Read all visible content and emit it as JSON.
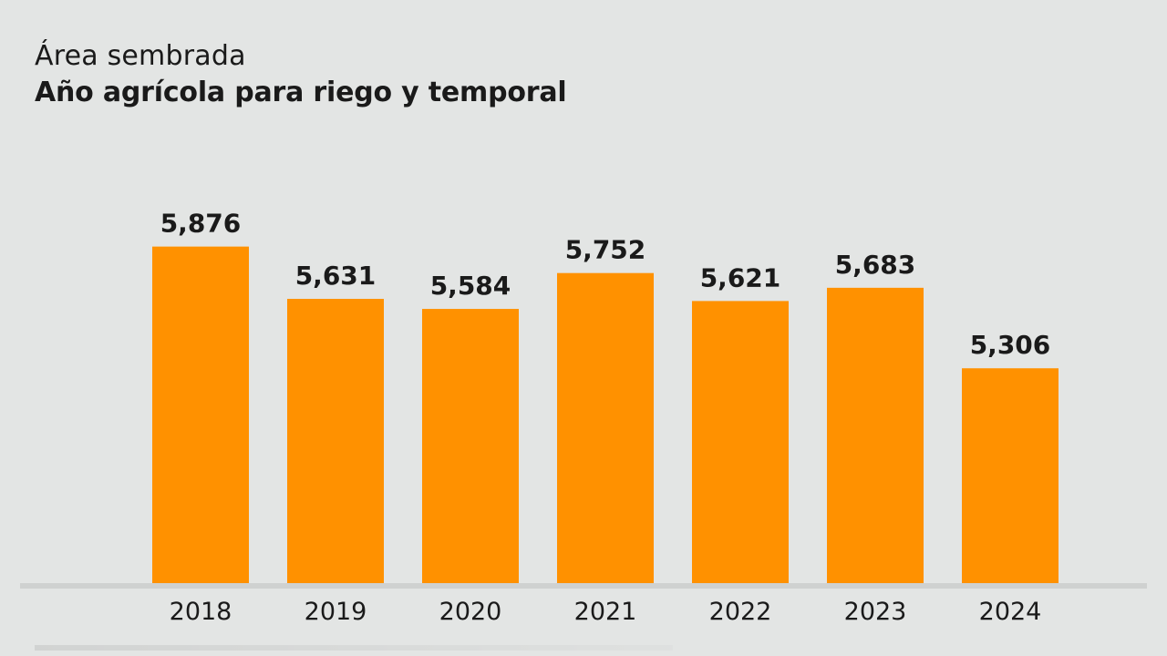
{
  "chart_data": {
    "type": "bar",
    "title": "Área sembrada",
    "subtitle": "Año agrícola para riego y temporal",
    "categories": [
      "2018",
      "2019",
      "2020",
      "2021",
      "2022",
      "2023",
      "2024"
    ],
    "values": [
      5876,
      5631,
      5584,
      5752,
      5621,
      5683,
      5306
    ],
    "value_labels": [
      "5,876",
      "5,631",
      "5,584",
      "5,752",
      "5,621",
      "5,683",
      "5,306"
    ],
    "xlabel": "",
    "ylabel": "",
    "ylim": [
      4300,
      5900
    ],
    "grid": false,
    "legend": "none",
    "colors": {
      "bar": "#ff9100",
      "background": "#e3e5e4",
      "baseline": "#cfd1d0",
      "text": "#1a1a1a"
    }
  }
}
